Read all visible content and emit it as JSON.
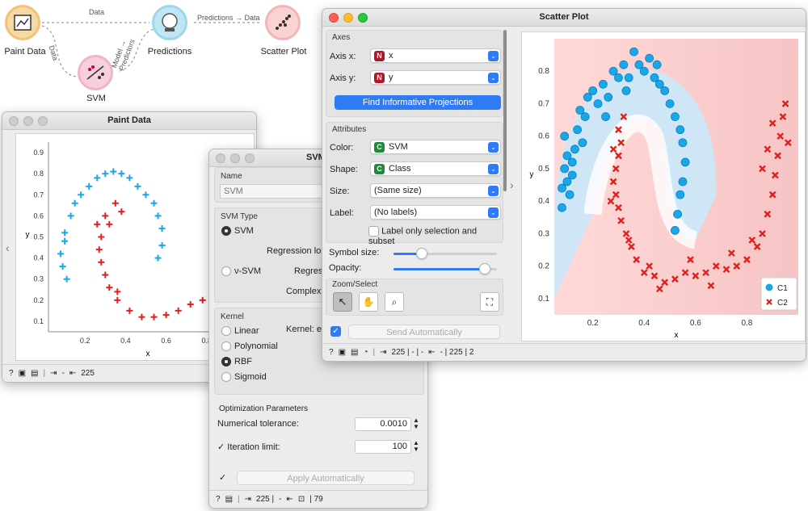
{
  "canvas": {
    "nodes": [
      {
        "id": "paint",
        "label": "Paint Data",
        "icon": "paint-data-icon"
      },
      {
        "id": "predictions",
        "label": "Predictions",
        "icon": "predictions-icon"
      },
      {
        "id": "scatter",
        "label": "Scatter Plot",
        "icon": "scatter-plot-icon"
      },
      {
        "id": "svm",
        "label": "SVM",
        "icon": "svm-icon"
      }
    ],
    "links": {
      "paint_pred": "Data",
      "pred_scatter": "Predictions → Data",
      "paint_svm": "Data",
      "svm_pred_1": "Model →",
      "svm_pred_2": "Predictors"
    }
  },
  "paint_window": {
    "title": "Paint Data",
    "xlabel": "x",
    "ylabel": "y",
    "xticks": [
      "0.2",
      "0.4",
      "0.6",
      "0.8"
    ],
    "yticks": [
      "0.1",
      "0.2",
      "0.3",
      "0.4",
      "0.5",
      "0.6",
      "0.7",
      "0.8",
      "0.9"
    ],
    "status_count": "225",
    "status_dash": "-",
    "colors": {
      "c1": "#1aa7e8",
      "c2": "#e0201c"
    }
  },
  "svm_window": {
    "title": "SVM",
    "name_label": "Name",
    "name_value": "SVM",
    "svm_type_label": "SVM Type",
    "svm_option": "SVM",
    "regression_loss": "Regression los",
    "nu_svm_option": "ν-SVM",
    "regression_2": "Regres",
    "complexity": "Complexi",
    "kernel_label": "Kernel",
    "kernel_eq": "Kernel: ex",
    "kernels": [
      "Linear",
      "Polynomial",
      "RBF",
      "Sigmoid"
    ],
    "selected_kernel": "RBF",
    "opt_label": "Optimization Parameters",
    "num_tol_label": "Numerical tolerance:",
    "num_tol_value": "0.0010",
    "iter_label": "Iteration limit:",
    "iter_value": "100",
    "apply_label": "Apply Automatically",
    "status_in": "225 |",
    "status_dash": "-",
    "status_out": "| 79"
  },
  "scatter_window": {
    "title": "Scatter Plot",
    "axes_label": "Axes",
    "axis_x_label": "Axis x:",
    "axis_x_value": "x",
    "axis_y_label": "Axis y:",
    "axis_y_value": "y",
    "find_button": "Find Informative Projections",
    "attributes_label": "Attributes",
    "color_label": "Color:",
    "color_value": "SVM",
    "shape_label": "Shape:",
    "shape_value": "Class",
    "size_label": "Size:",
    "size_value": "(Same size)",
    "label_label": "Label:",
    "label_value": "(No labels)",
    "label_only": "Label only selection and subset",
    "symbol_size_label": "Symbol size:",
    "symbol_size": 0.27,
    "opacity_label": "Opacity:",
    "opacity": 0.88,
    "zoom_label": "Zoom/Select",
    "send_label": "Send Automatically",
    "status_in": "225 | - | -",
    "status_out": "- | 225 | 2",
    "legend": [
      {
        "name": "C1",
        "color": "#1aa7e8"
      },
      {
        "name": "C2",
        "color": "#e0201c"
      }
    ],
    "xlabel": "x",
    "ylabel": "y"
  },
  "chart_data": [
    {
      "type": "scatter",
      "title": "",
      "xlabel": "x",
      "ylabel": "y",
      "xlim": [
        0.02,
        1.0
      ],
      "ylim": [
        0.05,
        0.95
      ],
      "series": [
        {
          "name": "C1",
          "marker": "plus",
          "color": "#1aa7e8",
          "points": [
            [
              0.1,
              0.48
            ],
            [
              0.1,
              0.52
            ],
            [
              0.13,
              0.6
            ],
            [
              0.15,
              0.66
            ],
            [
              0.18,
              0.7
            ],
            [
              0.22,
              0.74
            ],
            [
              0.26,
              0.78
            ],
            [
              0.3,
              0.8
            ],
            [
              0.34,
              0.81
            ],
            [
              0.38,
              0.8
            ],
            [
              0.42,
              0.78
            ],
            [
              0.46,
              0.74
            ],
            [
              0.5,
              0.7
            ],
            [
              0.54,
              0.66
            ],
            [
              0.56,
              0.6
            ],
            [
              0.58,
              0.54
            ],
            [
              0.58,
              0.46
            ],
            [
              0.56,
              0.4
            ],
            [
              0.08,
              0.42
            ],
            [
              0.09,
              0.36
            ],
            [
              0.11,
              0.3
            ]
          ]
        },
        {
          "name": "C2",
          "marker": "plus",
          "color": "#e0201c",
          "points": [
            [
              0.3,
              0.6
            ],
            [
              0.32,
              0.56
            ],
            [
              0.28,
              0.5
            ],
            [
              0.27,
              0.44
            ],
            [
              0.28,
              0.38
            ],
            [
              0.3,
              0.32
            ],
            [
              0.32,
              0.26
            ],
            [
              0.36,
              0.2
            ],
            [
              0.42,
              0.15
            ],
            [
              0.48,
              0.12
            ],
            [
              0.54,
              0.12
            ],
            [
              0.6,
              0.13
            ],
            [
              0.66,
              0.15
            ],
            [
              0.72,
              0.18
            ],
            [
              0.78,
              0.2
            ],
            [
              0.35,
              0.66
            ],
            [
              0.38,
              0.62
            ],
            [
              0.26,
              0.56
            ],
            [
              0.36,
              0.24
            ]
          ]
        }
      ]
    },
    {
      "type": "scatter",
      "title": "",
      "xlabel": "x",
      "ylabel": "y",
      "xlim": [
        0.05,
        1.0
      ],
      "ylim": [
        0.05,
        0.9
      ],
      "series": [
        {
          "name": "C1",
          "marker": "circle",
          "color": "#1aa7e8",
          "points": [
            [
              0.08,
              0.38
            ],
            [
              0.08,
              0.44
            ],
            [
              0.09,
              0.5
            ],
            [
              0.1,
              0.54
            ],
            [
              0.11,
              0.42
            ],
            [
              0.12,
              0.48
            ],
            [
              0.13,
              0.56
            ],
            [
              0.14,
              0.62
            ],
            [
              0.15,
              0.68
            ],
            [
              0.17,
              0.66
            ],
            [
              0.18,
              0.72
            ],
            [
              0.2,
              0.74
            ],
            [
              0.22,
              0.7
            ],
            [
              0.24,
              0.76
            ],
            [
              0.26,
              0.72
            ],
            [
              0.28,
              0.8
            ],
            [
              0.3,
              0.78
            ],
            [
              0.32,
              0.82
            ],
            [
              0.34,
              0.78
            ],
            [
              0.36,
              0.86
            ],
            [
              0.38,
              0.82
            ],
            [
              0.4,
              0.8
            ],
            [
              0.42,
              0.84
            ],
            [
              0.44,
              0.78
            ],
            [
              0.46,
              0.76
            ],
            [
              0.48,
              0.74
            ],
            [
              0.5,
              0.7
            ],
            [
              0.52,
              0.66
            ],
            [
              0.54,
              0.62
            ],
            [
              0.55,
              0.58
            ],
            [
              0.56,
              0.52
            ],
            [
              0.55,
              0.46
            ],
            [
              0.54,
              0.42
            ],
            [
              0.53,
              0.36
            ],
            [
              0.52,
              0.31
            ],
            [
              0.09,
              0.6
            ],
            [
              0.16,
              0.58
            ],
            [
              0.12,
              0.52
            ],
            [
              0.1,
              0.46
            ],
            [
              0.45,
              0.82
            ],
            [
              0.25,
              0.66
            ],
            [
              0.33,
              0.74
            ]
          ]
        },
        {
          "name": "C2",
          "marker": "cross",
          "color": "#e0201c",
          "points": [
            [
              0.3,
              0.62
            ],
            [
              0.31,
              0.58
            ],
            [
              0.3,
              0.54
            ],
            [
              0.29,
              0.5
            ],
            [
              0.28,
              0.46
            ],
            [
              0.29,
              0.42
            ],
            [
              0.3,
              0.38
            ],
            [
              0.31,
              0.34
            ],
            [
              0.33,
              0.3
            ],
            [
              0.35,
              0.26
            ],
            [
              0.37,
              0.22
            ],
            [
              0.4,
              0.18
            ],
            [
              0.44,
              0.17
            ],
            [
              0.48,
              0.15
            ],
            [
              0.52,
              0.16
            ],
            [
              0.56,
              0.18
            ],
            [
              0.6,
              0.17
            ],
            [
              0.64,
              0.18
            ],
            [
              0.68,
              0.2
            ],
            [
              0.72,
              0.19
            ],
            [
              0.76,
              0.2
            ],
            [
              0.8,
              0.22
            ],
            [
              0.84,
              0.26
            ],
            [
              0.86,
              0.3
            ],
            [
              0.88,
              0.36
            ],
            [
              0.9,
              0.42
            ],
            [
              0.91,
              0.48
            ],
            [
              0.92,
              0.54
            ],
            [
              0.93,
              0.6
            ],
            [
              0.94,
              0.66
            ],
            [
              0.95,
              0.7
            ],
            [
              0.9,
              0.64
            ],
            [
              0.88,
              0.56
            ],
            [
              0.86,
              0.5
            ],
            [
              0.32,
              0.66
            ],
            [
              0.27,
              0.4
            ],
            [
              0.34,
              0.28
            ],
            [
              0.46,
              0.13
            ],
            [
              0.66,
              0.14
            ],
            [
              0.82,
              0.28
            ],
            [
              0.96,
              0.58
            ],
            [
              0.28,
              0.56
            ],
            [
              0.74,
              0.24
            ],
            [
              0.58,
              0.22
            ],
            [
              0.42,
              0.2
            ]
          ]
        }
      ]
    }
  ]
}
